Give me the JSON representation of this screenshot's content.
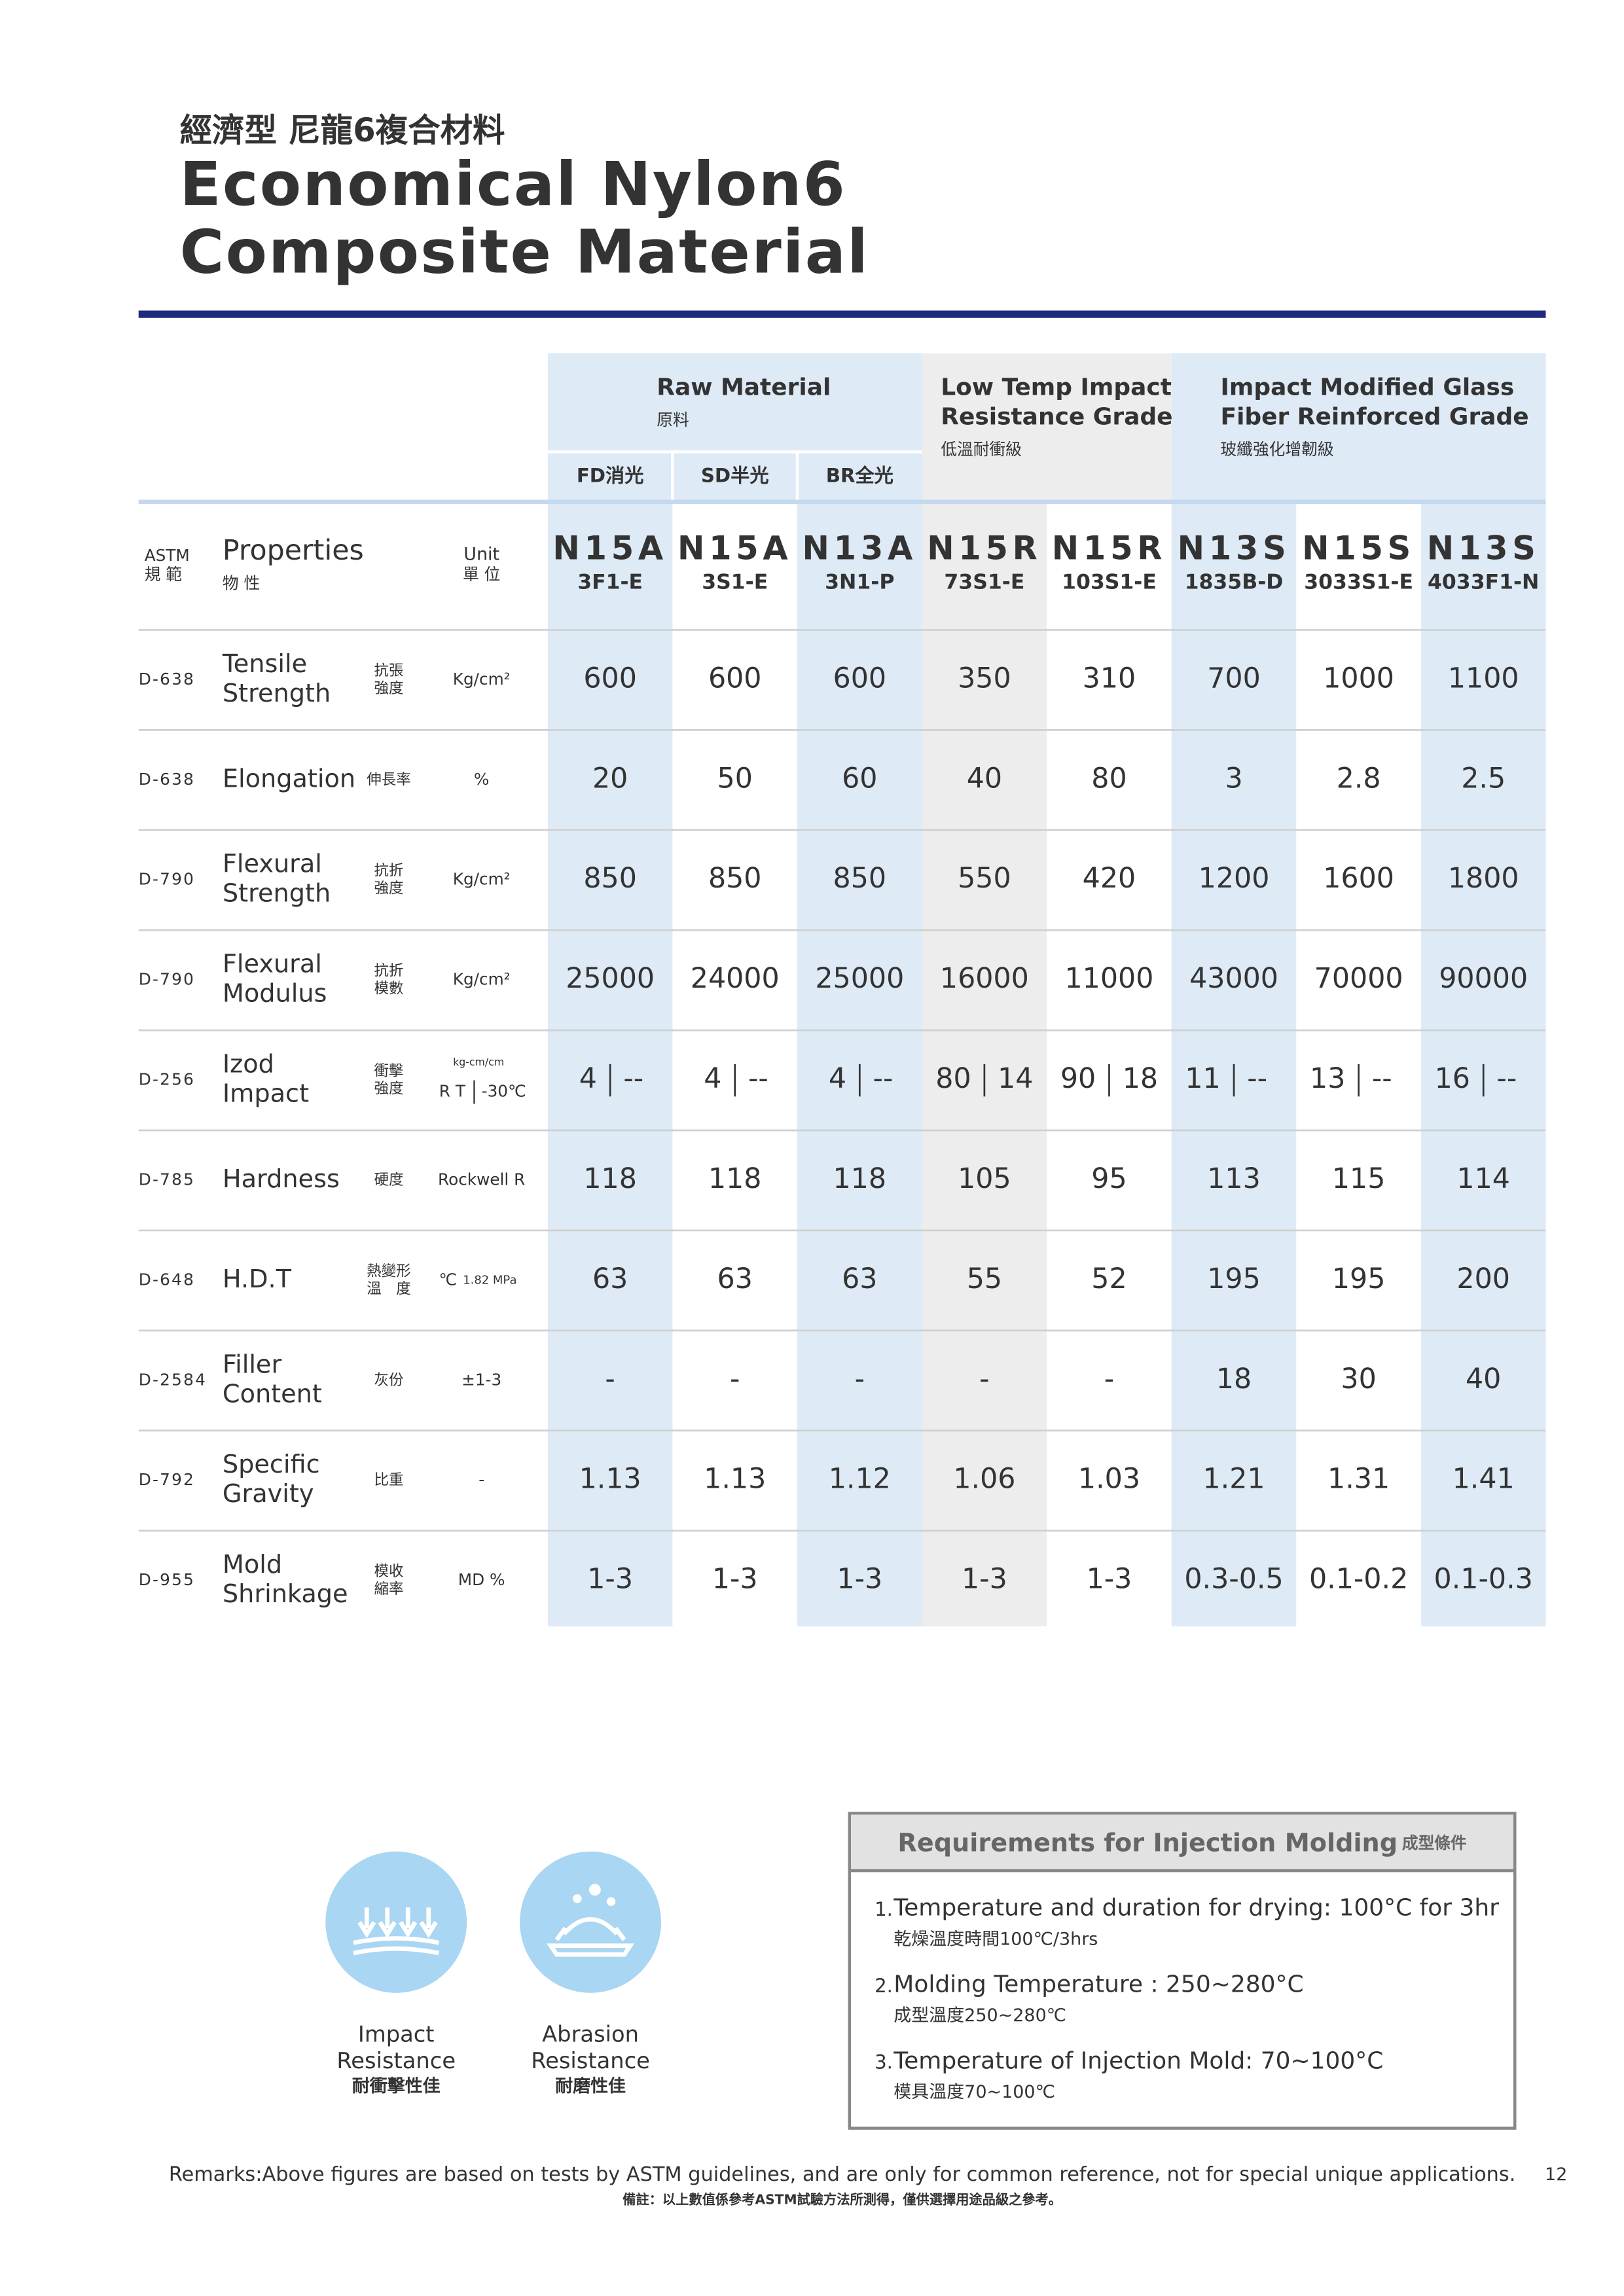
{
  "header": {
    "title_zh": "經濟型 尼龍6複合材料",
    "title_en": [
      "Economical Nylon6",
      "Composite Material"
    ]
  },
  "table": {
    "groups": [
      {
        "name": [
          "Raw Material"
        ],
        "name_zh": "原料"
      },
      {
        "name": [
          "Low Temp Impact",
          "Resistance Grade"
        ],
        "name_zh": "低溫耐衝級"
      },
      {
        "name": [
          "Impact Modified Glass",
          "Fiber Reinforced Grade"
        ],
        "name_zh": "玻纖強化增韌級"
      }
    ],
    "subgroups": [
      "FD消光",
      "SD半光",
      "BR全光"
    ],
    "head": {
      "astm": "ASTM",
      "astm_zh": "規 範",
      "properties": "Properties",
      "properties_zh": "物 性",
      "unit": "Unit",
      "unit_zh": "單 位"
    },
    "products": [
      {
        "code": "N15A",
        "grade": "3F1-E"
      },
      {
        "code": "N15A",
        "grade": "3S1-E"
      },
      {
        "code": "N13A",
        "grade": "3N1-P"
      },
      {
        "code": "N15R",
        "grade": "73S1-E"
      },
      {
        "code": "N15R",
        "grade": "103S1-E"
      },
      {
        "code": "N13S",
        "grade": "1835B-D"
      },
      {
        "code": "N15S",
        "grade": "3033S1-E"
      },
      {
        "code": "N13S",
        "grade": "4033F1-N"
      }
    ],
    "rows": [
      {
        "astm": "D-638",
        "property": [
          "Tensile",
          "Strength"
        ],
        "property_zh": [
          "抗張",
          "強度"
        ],
        "unit": "Kg/cm²",
        "values": [
          600,
          600,
          600,
          350,
          310,
          700,
          1000,
          1100
        ]
      },
      {
        "astm": "D-638",
        "property": [
          "Elongation"
        ],
        "property_zh": [
          "伸長率"
        ],
        "unit": "%",
        "values": [
          20,
          50,
          60,
          40,
          80,
          3,
          2.8,
          2.5
        ]
      },
      {
        "astm": "D-790",
        "property": [
          "Flexural",
          "Strength"
        ],
        "property_zh": [
          "抗折",
          "強度"
        ],
        "unit": "Kg/cm²",
        "values": [
          850,
          850,
          850,
          550,
          420,
          1200,
          1600,
          1800
        ]
      },
      {
        "astm": "D-790",
        "property": [
          "Flexural",
          "Modulus"
        ],
        "property_zh": [
          "抗折",
          "模數"
        ],
        "unit": "Kg/cm²",
        "values": [
          25000,
          24000,
          25000,
          16000,
          11000,
          43000,
          70000,
          90000
        ]
      },
      {
        "astm": "D-256",
        "property": [
          "Izod",
          "Impact"
        ],
        "property_zh": [
          "衝擊",
          "強度"
        ],
        "unit": {
          "label": "kg-cm/cm",
          "conditions": [
            "R T",
            "-30℃"
          ]
        },
        "values": [
          [
            4,
            "--"
          ],
          [
            4,
            "--"
          ],
          [
            4,
            "--"
          ],
          [
            80,
            14
          ],
          [
            90,
            18
          ],
          [
            11,
            "--"
          ],
          [
            13,
            "--"
          ],
          [
            16,
            "--"
          ]
        ]
      },
      {
        "astm": "D-785",
        "property": [
          "Hardness"
        ],
        "property_zh": [
          "硬度"
        ],
        "unit": "Rockwell R",
        "values": [
          118,
          118,
          118,
          105,
          95,
          113,
          115,
          114
        ]
      },
      {
        "astm": "D-648",
        "property": [
          "H.D.T"
        ],
        "property_zh": [
          "熱變形",
          "溫　度"
        ],
        "unit": [
          "℃",
          "1.82 MPa"
        ],
        "values": [
          63,
          63,
          63,
          55,
          52,
          195,
          195,
          200
        ]
      },
      {
        "astm": "D-2584",
        "property": [
          "Filler",
          "Content"
        ],
        "property_zh": [
          "灰份"
        ],
        "unit": "±1-3",
        "values": [
          "-",
          "-",
          "-",
          "-",
          "-",
          18,
          30,
          40
        ]
      },
      {
        "astm": "D-792",
        "property": [
          "Specific",
          "Gravity"
        ],
        "property_zh": [
          "比重"
        ],
        "unit": "-",
        "values": [
          1.13,
          1.13,
          1.12,
          1.06,
          1.03,
          1.21,
          1.31,
          1.41
        ]
      },
      {
        "astm": "D-955",
        "property": [
          "Mold",
          "Shrinkage"
        ],
        "property_zh": [
          "模收",
          "縮率"
        ],
        "unit": "MD %",
        "values": [
          "1-3",
          "1-3",
          "1-3",
          "1-3",
          "1-3",
          "0.3-0.5",
          "0.1-0.2",
          "0.1-0.3"
        ]
      }
    ]
  },
  "features": [
    {
      "label": [
        "Impact",
        "Resistance"
      ],
      "label_zh": "耐衝擊性佳"
    },
    {
      "label": [
        "Abrasion",
        "Resistance"
      ],
      "label_zh": "耐磨性佳"
    }
  ],
  "requirements": {
    "title": "Requirements for Injection Molding",
    "title_zh": "成型條件",
    "items": [
      {
        "number": "1.",
        "text": "Temperature and duration for drying: 100°C for 3hr",
        "text_zh": "乾燥溫度時間100℃/3hrs"
      },
      {
        "number": "2.",
        "text": "Molding Temperature : 250~280°C",
        "text_zh": "成型溫度250~280℃"
      },
      {
        "number": "3.",
        "text": "Temperature of Injection Mold: 70~100°C",
        "text_zh": "模具溫度70~100℃"
      }
    ]
  },
  "footer": {
    "remarks": "Remarks:Above figures are based on tests by ASTM guidelines, and are only for common reference, not for special unique applications.",
    "remarks_zh": "備註：以上數值係參考ASTM試驗方法所測得，僅供選擇用途品級之參考。",
    "page_number": 12
  }
}
